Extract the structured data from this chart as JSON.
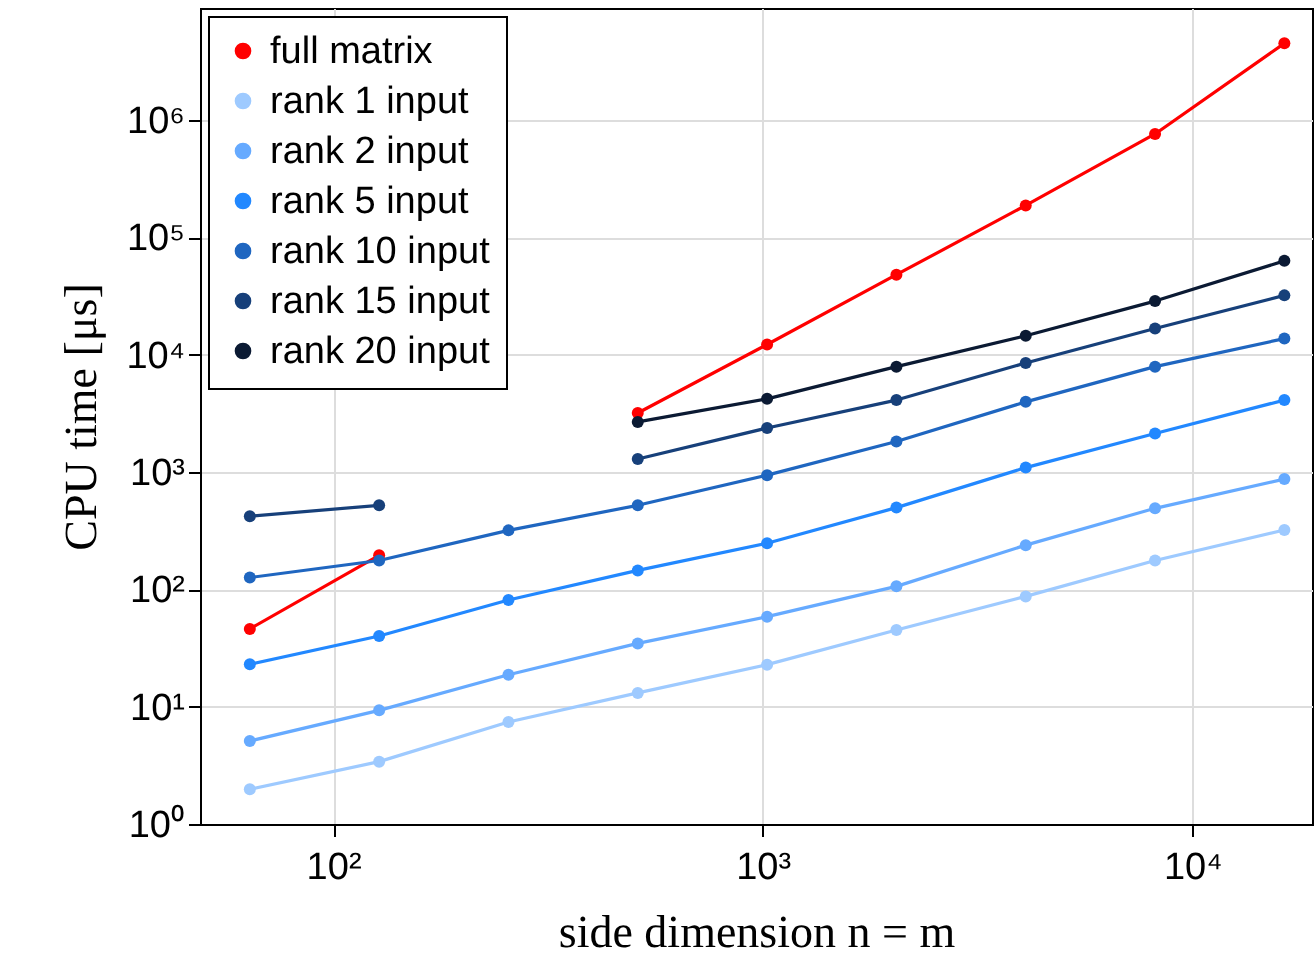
{
  "chart_data": {
    "type": "line",
    "xlabel": "side dimension n = m",
    "ylabel": "CPU time [μs]",
    "x": [
      64,
      128,
      256,
      512,
      1024,
      2048,
      4096,
      8192,
      16384
    ],
    "series": [
      {
        "name": "full matrix",
        "color": "#ff0000",
        "values": [
          46,
          195,
          null,
          3180,
          12200,
          48000,
          187000,
          760000,
          4500000
        ]
      },
      {
        "name": "rank 1 input",
        "color": "#9ecaff",
        "values": [
          1.98,
          3.4,
          7.4,
          13.1,
          22.8,
          45,
          87,
          176,
          320
        ]
      },
      {
        "name": "rank 2 input",
        "color": "#66aaff",
        "values": [
          5.1,
          9.3,
          18.7,
          34.6,
          58.5,
          106,
          238,
          490,
          870
        ]
      },
      {
        "name": "rank 5 input",
        "color": "#2288ff",
        "values": [
          23,
          40,
          81,
          145,
          247,
          497,
          1090,
          2130,
          4100
        ]
      },
      {
        "name": "rank 10 input",
        "color": "#1f66c0",
        "values": [
          126,
          176,
          318,
          520,
          940,
          1820,
          3960,
          7900,
          13700
        ]
      },
      {
        "name": "rank 15 input",
        "color": "#17407a",
        "values": [
          420,
          520,
          null,
          1290,
          2370,
          4100,
          8500,
          16700,
          32000
        ]
      },
      {
        "name": "rank 20 input",
        "color": "#0b1a33",
        "values": [
          null,
          null,
          null,
          2670,
          4200,
          7900,
          14500,
          28600,
          63000
        ]
      }
    ],
    "log": "xy",
    "xlim": [
      49,
      19000
    ],
    "ylim": [
      1,
      9000000
    ],
    "xticks": [
      {
        "value": 100,
        "label": "10²"
      },
      {
        "value": 1000,
        "label": "10³"
      },
      {
        "value": 10000,
        "label": "10⁴"
      }
    ],
    "yticks": [
      {
        "value": 1,
        "label": "10⁰"
      },
      {
        "value": 10,
        "label": "10¹"
      },
      {
        "value": 100,
        "label": "10²"
      },
      {
        "value": 1000,
        "label": "10³"
      },
      {
        "value": 10000,
        "label": "10⁴"
      },
      {
        "value": 100000,
        "label": "10⁵"
      },
      {
        "value": 1000000,
        "label": "10⁶"
      }
    ],
    "grid": true,
    "legend": "top left",
    "marker": "circle",
    "line_style": "solid"
  }
}
